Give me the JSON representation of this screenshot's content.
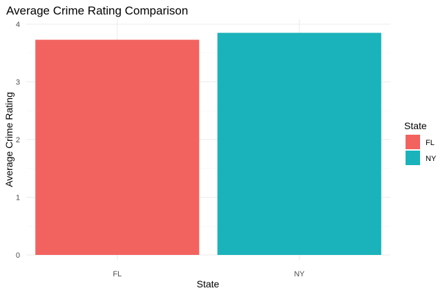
{
  "chart_data": {
    "type": "bar",
    "title": "Average Crime Rating Comparison",
    "xlabel": "State",
    "ylabel": "Average Crime Rating",
    "categories": [
      "FL",
      "NY"
    ],
    "values": [
      3.73,
      3.85
    ],
    "colors": [
      "#F8766D",
      "#00BFC4"
    ],
    "bar_colors": [
      "#F26360",
      "#1AB3BB"
    ],
    "ylim": [
      0,
      4
    ],
    "yticks": [
      "0",
      "1",
      "2",
      "3",
      "4"
    ],
    "grid": true,
    "legend": {
      "title": "State",
      "position": "right",
      "entries": [
        "FL",
        "NY"
      ]
    }
  }
}
